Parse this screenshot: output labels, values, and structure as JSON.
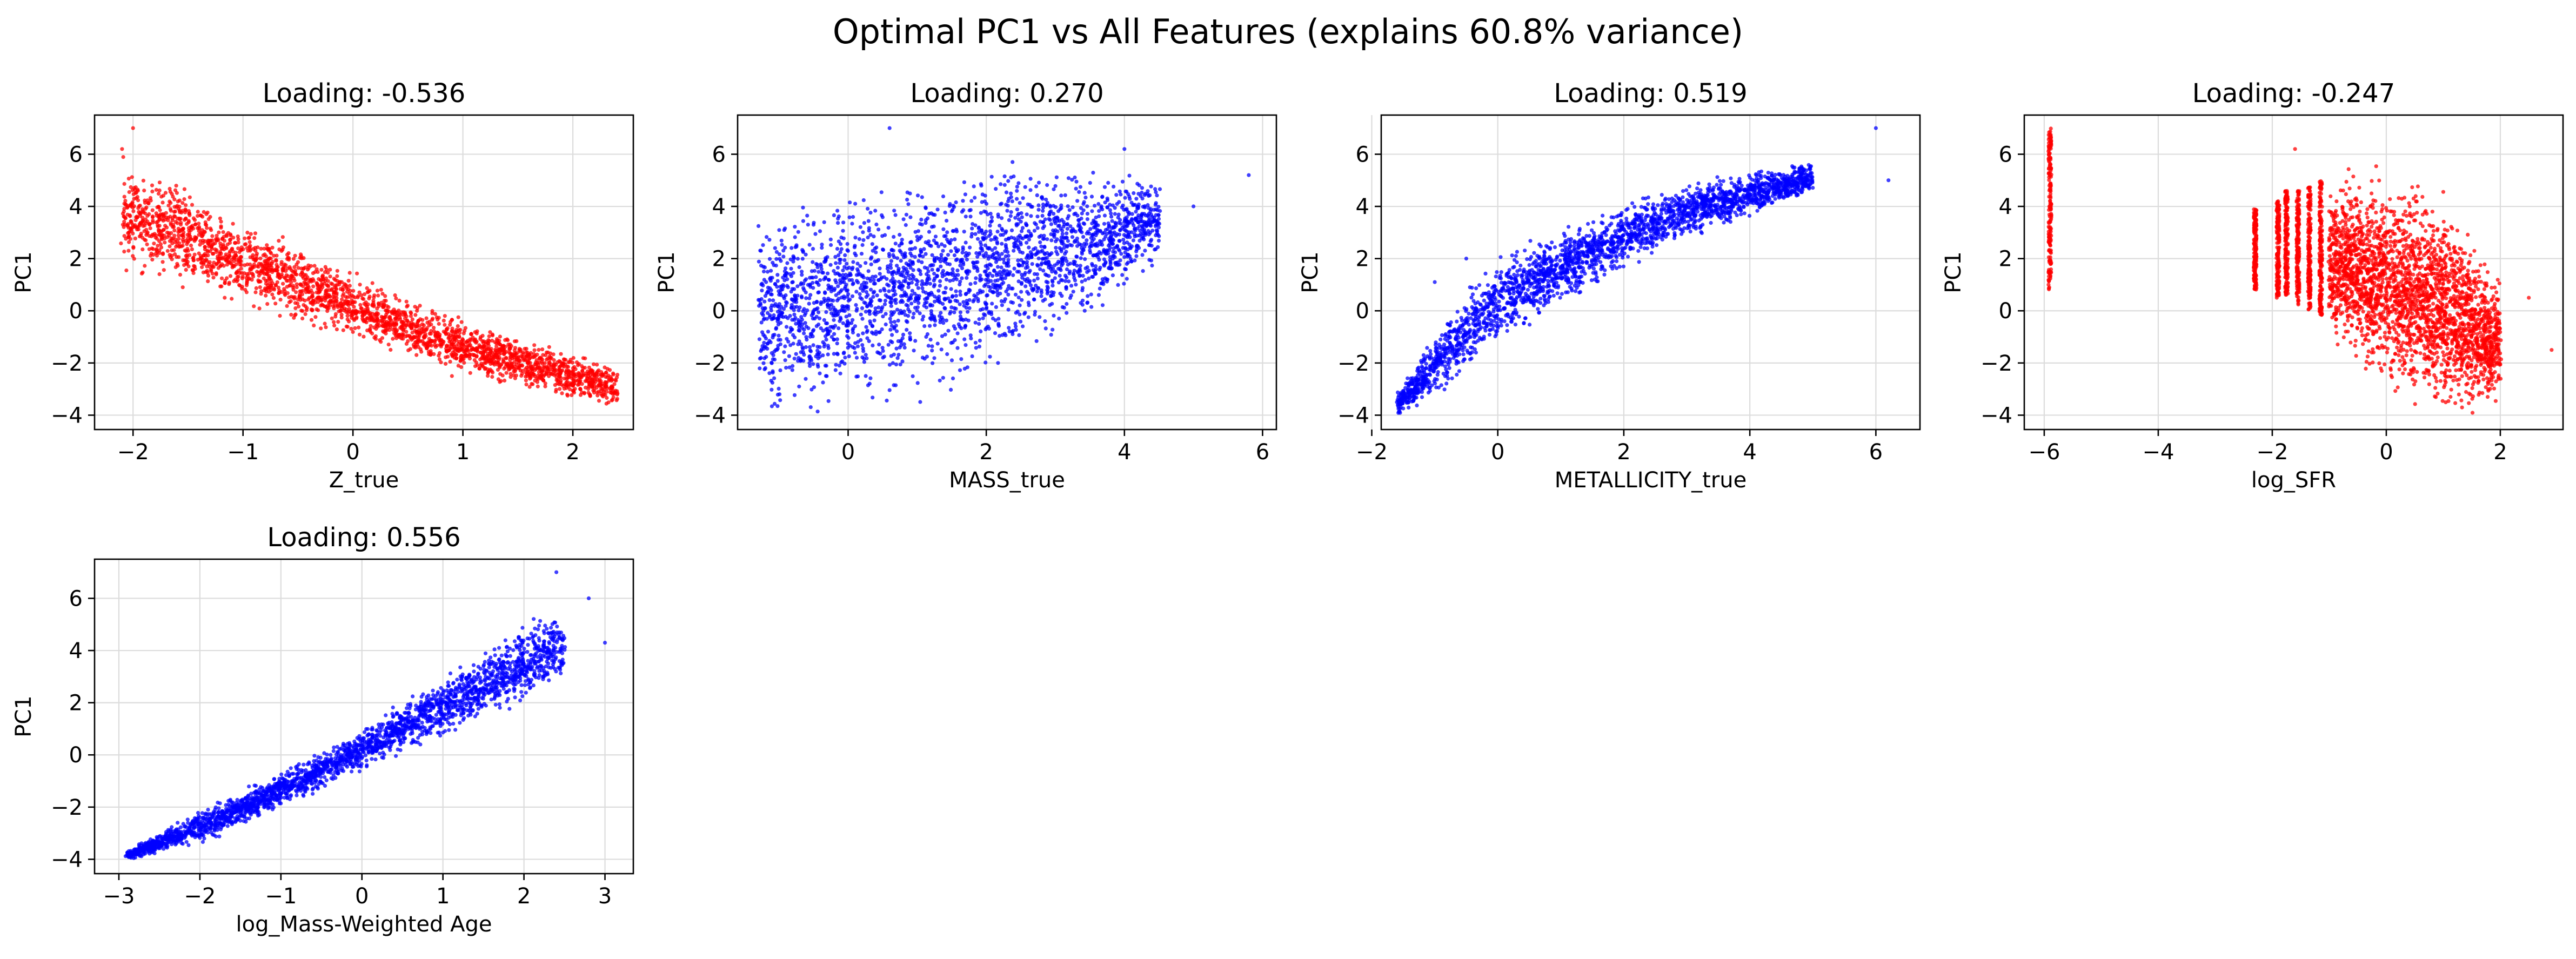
{
  "figure": {
    "suptitle": "Optimal PC1 vs All Features (explains 60.8% variance)"
  },
  "chart_data": [
    {
      "type": "scatter",
      "title": "Loading: -0.536",
      "xlabel": "Z_true",
      "ylabel": "PC1",
      "color": "#ff0000",
      "xlim": [
        -2.35,
        2.55
      ],
      "ylim": [
        -4.55,
        7.5
      ],
      "xticks": [
        -2,
        -1,
        0,
        1,
        2
      ],
      "yticks": [
        -4,
        -2,
        0,
        2,
        4,
        6
      ],
      "grid": true,
      "bands": [
        {
          "x": -2.1,
          "ymin": 1.6,
          "ymax": 5.9
        },
        {
          "x": -1.5,
          "ymin": 1.0,
          "ymax": 4.6
        },
        {
          "x": -1.0,
          "ymin": 0.2,
          "ymax": 3.5
        },
        {
          "x": -0.5,
          "ymin": -0.5,
          "ymax": 2.6
        },
        {
          "x": 0.0,
          "ymin": -1.2,
          "ymax": 1.5
        },
        {
          "x": 0.5,
          "ymin": -1.8,
          "ymax": 0.5
        },
        {
          "x": 1.0,
          "ymin": -2.4,
          "ymax": -0.3
        },
        {
          "x": 1.5,
          "ymin": -2.9,
          "ymax": -1.0
        },
        {
          "x": 2.0,
          "ymin": -3.4,
          "ymax": -1.6
        },
        {
          "x": 2.4,
          "ymin": -3.9,
          "ymax": -2.1
        }
      ],
      "outliers": [
        {
          "x": -2.0,
          "y": 7.0
        },
        {
          "x": -2.1,
          "y": 6.2
        },
        {
          "x": 0.9,
          "y": -2.5
        }
      ]
    },
    {
      "type": "scatter",
      "title": "Loading: 0.270",
      "xlabel": "MASS_true",
      "ylabel": "PC1",
      "color": "#0000ff",
      "xlim": [
        -1.6,
        6.2
      ],
      "ylim": [
        -4.55,
        7.5
      ],
      "xticks": [
        0,
        2,
        4,
        6
      ],
      "yticks": [
        -4,
        -2,
        0,
        2,
        4,
        6
      ],
      "grid": true,
      "bands": [
        {
          "x": -1.3,
          "ymin": -4.0,
          "ymax": 4.0
        },
        {
          "x": -0.5,
          "ymin": -4.0,
          "ymax": 4.3
        },
        {
          "x": 0.5,
          "ymin": -3.6,
          "ymax": 4.7
        },
        {
          "x": 1.5,
          "ymin": -2.8,
          "ymax": 5.3
        },
        {
          "x": 2.5,
          "ymin": -1.5,
          "ymax": 5.8
        },
        {
          "x": 3.5,
          "ymin": -0.3,
          "ymax": 5.5
        },
        {
          "x": 4.5,
          "ymin": 2.0,
          "ymax": 5.0
        }
      ],
      "outliers": [
        {
          "x": 0.6,
          "y": 7.0
        },
        {
          "x": 5.8,
          "y": 5.2
        },
        {
          "x": 4.0,
          "y": 6.2
        },
        {
          "x": 5.0,
          "y": 4.0
        }
      ]
    },
    {
      "type": "scatter",
      "title": "Loading: 0.519",
      "xlabel": "METALLICITY_true",
      "ylabel": "PC1",
      "color": "#0000ff",
      "xlim": [
        -1.85,
        6.7
      ],
      "ylim": [
        -4.55,
        7.5
      ],
      "xticks": [
        -2,
        0,
        2,
        4,
        6
      ],
      "yticks": [
        -4,
        -2,
        0,
        2,
        4,
        6
      ],
      "grid": true,
      "bands": [
        {
          "x": -1.6,
          "ymin": -4.0,
          "ymax": -3.2
        },
        {
          "x": -1.0,
          "ymin": -3.2,
          "ymax": -1.0
        },
        {
          "x": -0.5,
          "ymin": -2.3,
          "ymax": 0.8
        },
        {
          "x": 0.0,
          "ymin": -1.3,
          "ymax": 2.0
        },
        {
          "x": 1.0,
          "ymin": 0.2,
          "ymax": 3.2
        },
        {
          "x": 2.0,
          "ymin": 1.6,
          "ymax": 4.1
        },
        {
          "x": 3.0,
          "ymin": 2.8,
          "ymax": 4.8
        },
        {
          "x": 4.0,
          "ymin": 3.6,
          "ymax": 5.3
        },
        {
          "x": 5.0,
          "ymin": 4.5,
          "ymax": 5.7
        }
      ],
      "outliers": [
        {
          "x": 6.0,
          "y": 7.0
        },
        {
          "x": 6.2,
          "y": 5.0
        },
        {
          "x": -1.0,
          "y": 1.1
        },
        {
          "x": -0.5,
          "y": 2.0
        }
      ]
    },
    {
      "type": "scatter",
      "title": "Loading: -0.247",
      "xlabel": "log_SFR",
      "ylabel": "PC1",
      "color": "#ff0000",
      "xlim": [
        -6.35,
        3.1
      ],
      "ylim": [
        -4.55,
        7.5
      ],
      "xticks": [
        -6,
        -4,
        -2,
        0,
        2
      ],
      "yticks": [
        -4,
        -2,
        0,
        2,
        4,
        6
      ],
      "grid": true,
      "columns": [
        {
          "x": -5.9,
          "ymin": 0.8,
          "ymax": 7.0
        },
        {
          "x": -2.3,
          "ymin": 0.8,
          "ymax": 3.9
        },
        {
          "x": -1.9,
          "ymin": 0.5,
          "ymax": 4.2
        },
        {
          "x": -1.75,
          "ymin": 0.6,
          "ymax": 4.6
        },
        {
          "x": -1.55,
          "ymin": 0.2,
          "ymax": 4.6
        },
        {
          "x": -1.35,
          "ymin": 0.0,
          "ymax": 4.8
        },
        {
          "x": -1.15,
          "ymin": -0.2,
          "ymax": 5.0
        }
      ],
      "bands": [
        {
          "x": -1.0,
          "ymin": -1.0,
          "ymax": 4.8
        },
        {
          "x": -0.5,
          "ymin": -1.8,
          "ymax": 5.3
        },
        {
          "x": 0.0,
          "ymin": -2.8,
          "ymax": 5.2
        },
        {
          "x": 0.5,
          "ymin": -3.6,
          "ymax": 5.0
        },
        {
          "x": 1.0,
          "ymin": -4.0,
          "ymax": 4.2
        },
        {
          "x": 1.5,
          "ymin": -4.0,
          "ymax": 2.8
        },
        {
          "x": 2.0,
          "ymin": -3.5,
          "ymax": 1.0
        }
      ],
      "outliers": [
        {
          "x": -1.6,
          "y": 6.2
        },
        {
          "x": 2.9,
          "y": -1.5
        },
        {
          "x": 2.5,
          "y": 0.5
        }
      ]
    },
    {
      "type": "scatter",
      "title": "Loading: 0.556",
      "xlabel": "log_Mass-Weighted Age",
      "ylabel": "PC1",
      "color": "#0000ff",
      "xlim": [
        -3.3,
        3.35
      ],
      "ylim": [
        -4.55,
        7.5
      ],
      "xticks": [
        -3,
        -2,
        -1,
        0,
        1,
        2,
        3
      ],
      "yticks": [
        -4,
        -2,
        0,
        2,
        4,
        6
      ],
      "grid": true,
      "bands": [
        {
          "x": -2.9,
          "ymin": -4.0,
          "ymax": -3.7
        },
        {
          "x": -2.5,
          "ymin": -3.8,
          "ymax": -3.0
        },
        {
          "x": -2.0,
          "ymin": -3.4,
          "ymax": -2.1
        },
        {
          "x": -1.5,
          "ymin": -2.7,
          "ymax": -1.4
        },
        {
          "x": -1.0,
          "ymin": -2.0,
          "ymax": -0.6
        },
        {
          "x": -0.5,
          "ymin": -1.3,
          "ymax": 0.2
        },
        {
          "x": 0.0,
          "ymin": -0.6,
          "ymax": 1.0
        },
        {
          "x": 0.5,
          "ymin": 0.1,
          "ymax": 2.0
        },
        {
          "x": 1.0,
          "ymin": 0.7,
          "ymax": 3.0
        },
        {
          "x": 1.5,
          "ymin": 1.4,
          "ymax": 4.0
        },
        {
          "x": 2.0,
          "ymin": 2.1,
          "ymax": 5.0
        },
        {
          "x": 2.5,
          "ymin": 2.8,
          "ymax": 5.6
        }
      ],
      "outliers": [
        {
          "x": 2.4,
          "y": 7.0
        },
        {
          "x": 3.0,
          "y": 4.3
        },
        {
          "x": 2.8,
          "y": 6.0
        }
      ]
    }
  ]
}
